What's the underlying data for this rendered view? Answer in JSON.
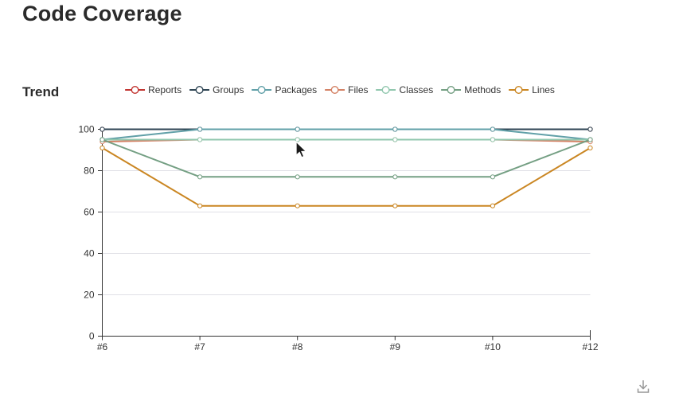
{
  "page": {
    "title": "Code Coverage"
  },
  "section": {
    "heading": "Trend"
  },
  "chart_data": {
    "type": "line",
    "title": "Trend",
    "x": [
      "#6",
      "#7",
      "#8",
      "#9",
      "#10",
      "#12"
    ],
    "xlabel": "",
    "ylabel": "",
    "ylim": [
      0,
      100
    ],
    "y_ticks": [
      0,
      20,
      40,
      60,
      80,
      100
    ],
    "grid": true,
    "legend_position": "top",
    "marker": "empty-circle",
    "series": [
      {
        "name": "Reports",
        "color": "#c23531",
        "values": [
          100,
          100,
          100,
          100,
          100,
          100
        ]
      },
      {
        "name": "Groups",
        "color": "#2f4554",
        "values": [
          100,
          100,
          100,
          100,
          100,
          100
        ]
      },
      {
        "name": "Packages",
        "color": "#61a0a8",
        "values": [
          95,
          100,
          100,
          100,
          100,
          95
        ]
      },
      {
        "name": "Files",
        "color": "#d48265",
        "values": [
          94,
          95,
          95,
          95,
          95,
          94
        ]
      },
      {
        "name": "Classes",
        "color": "#91c7ae",
        "values": [
          95,
          95,
          95,
          95,
          95,
          95
        ]
      },
      {
        "name": "Methods",
        "color": "#749f83",
        "values": [
          95,
          77,
          77,
          77,
          77,
          95
        ]
      },
      {
        "name": "Lines",
        "color": "#ca8622",
        "values": [
          91,
          63,
          63,
          63,
          63,
          91
        ]
      }
    ],
    "axis_color": "#333333",
    "grid_color": "#e0e0e6"
  },
  "toolbox": {
    "save_as_image_icon": "download-icon"
  }
}
